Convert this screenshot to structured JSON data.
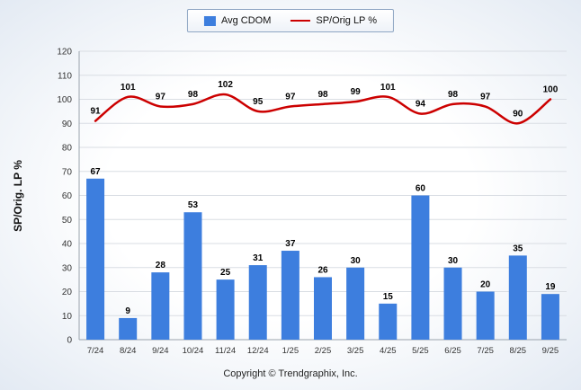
{
  "legend": {
    "items": [
      {
        "label": "Avg CDOM",
        "type": "bar",
        "color": "#3d7ede"
      },
      {
        "label": "SP/Orig LP %",
        "type": "line",
        "color": "#cc0000"
      }
    ]
  },
  "ylabel": "SP/Orig. LP %",
  "copyright": "Copyright © Trendgraphix, Inc.",
  "chart_data": {
    "type": "bar+line",
    "categories": [
      "7/24",
      "8/24",
      "9/24",
      "10/24",
      "11/24",
      "12/24",
      "1/25",
      "2/25",
      "3/25",
      "4/25",
      "5/25",
      "6/25",
      "7/25",
      "8/25",
      "9/25"
    ],
    "series": [
      {
        "name": "Avg CDOM",
        "type": "bar",
        "color": "#3d7ede",
        "values": [
          67,
          9,
          28,
          53,
          25,
          31,
          37,
          26,
          30,
          15,
          60,
          30,
          20,
          35,
          19
        ]
      },
      {
        "name": "SP/Orig LP %",
        "type": "line",
        "color": "#cc0000",
        "values": [
          91,
          101,
          97,
          98,
          102,
          95,
          97,
          98,
          99,
          101,
          94,
          98,
          97,
          90,
          100
        ]
      }
    ],
    "title": "",
    "xlabel": "",
    "ylabel": "SP/Orig. LP %",
    "ylim": [
      0,
      120
    ],
    "ytick_step": 10,
    "grid": true,
    "legend_position": "top"
  }
}
